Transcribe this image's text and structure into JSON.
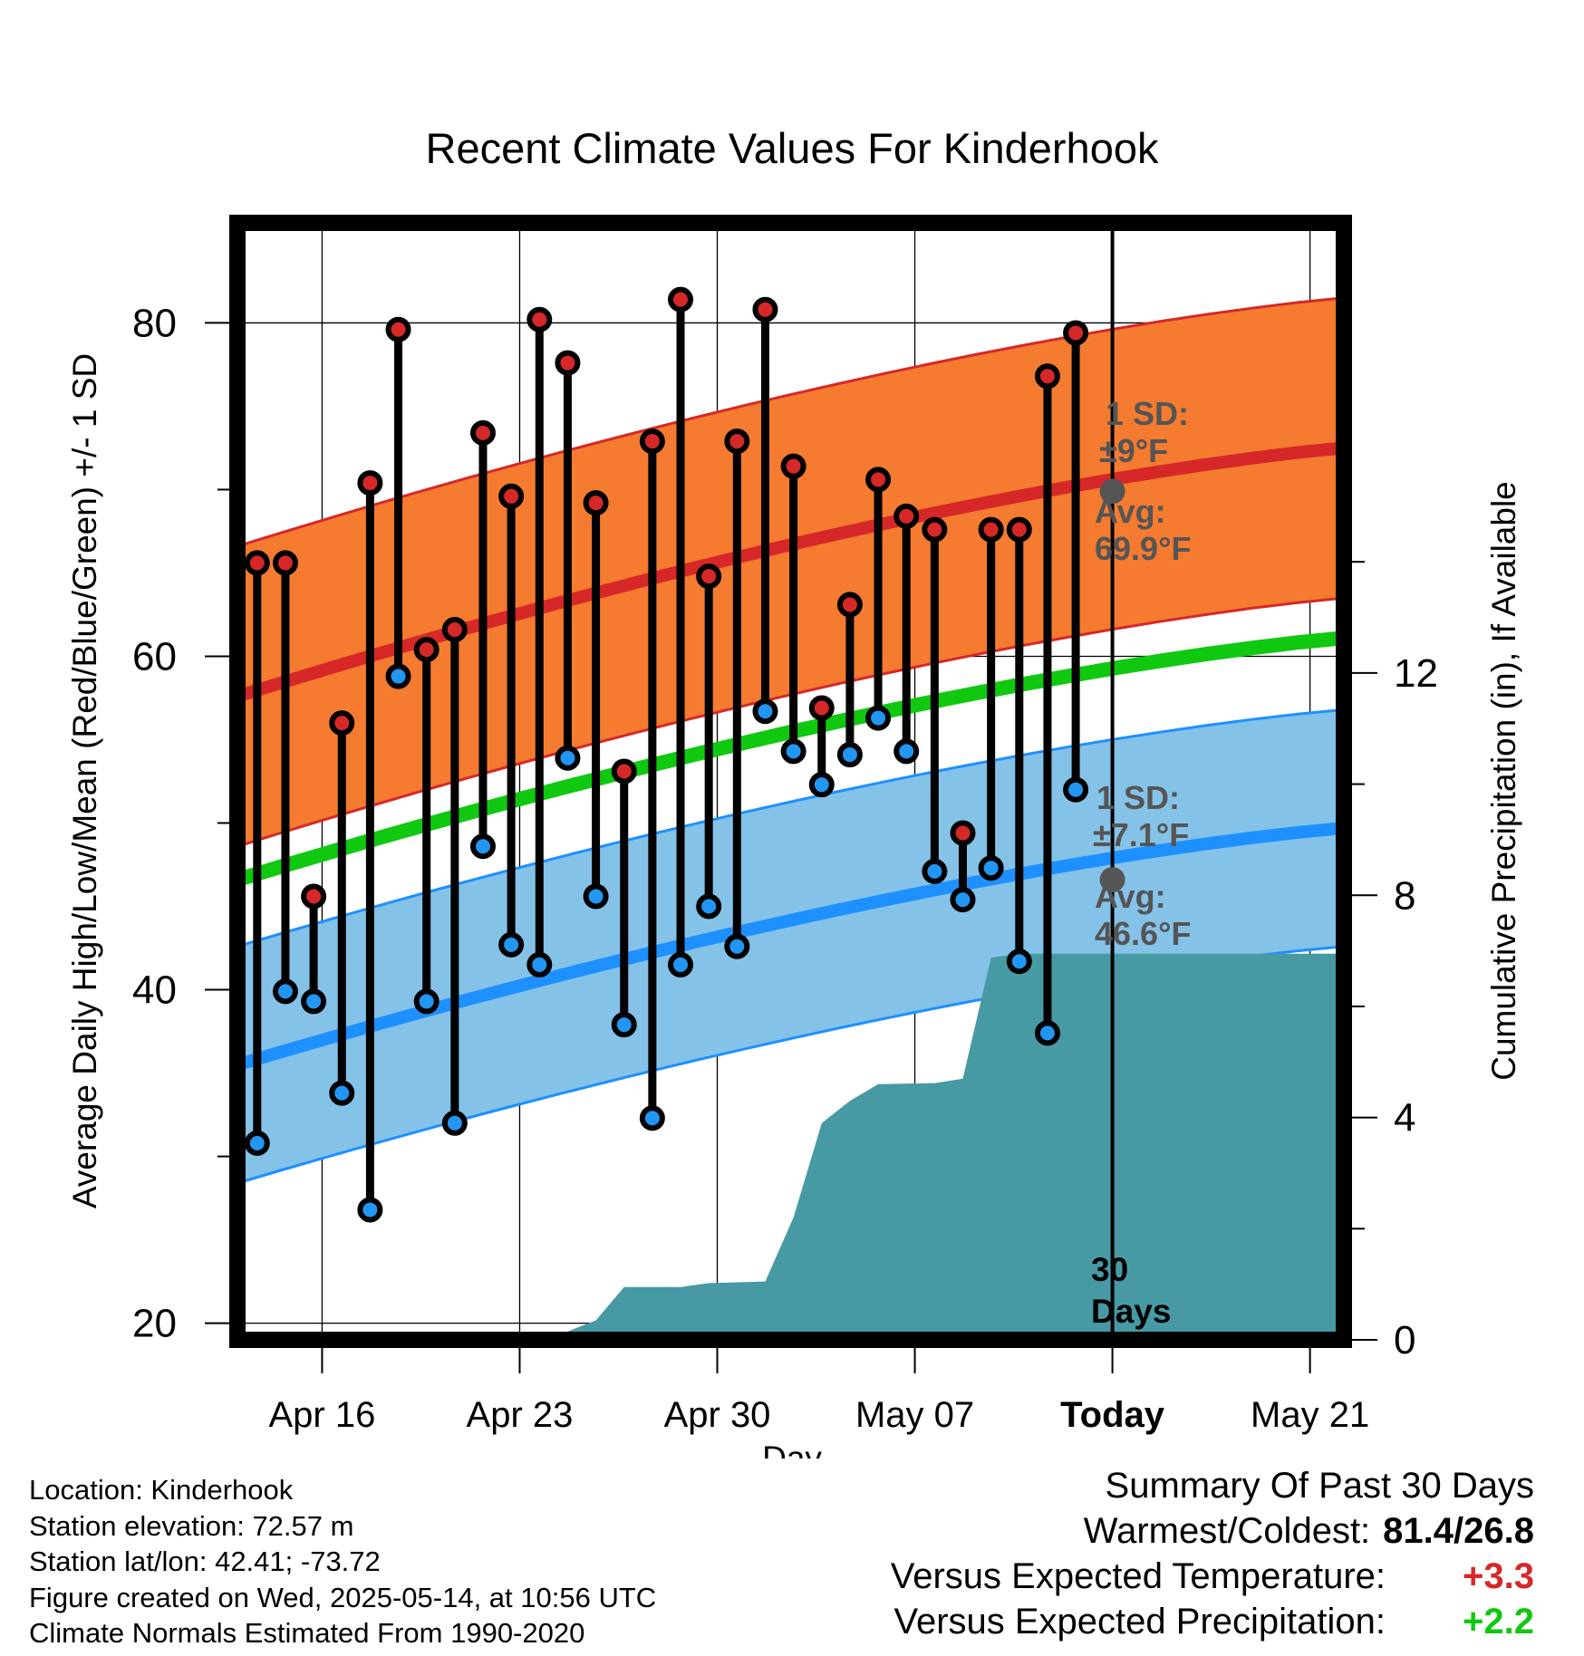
{
  "chart_data": {
    "type": "line",
    "title": "Recent Climate Values For Kinderhook",
    "xlabel": "Day",
    "ylabel": "Average Daily High/Low/Mean (Red/Blue/Green) +/- 1 SD",
    "y2label": "Cumulative Precipitation (in), If Available",
    "ylim": [
      19,
      86
    ],
    "y2lim": [
      0,
      20.1
    ],
    "xlim": [
      -0.7,
      38.5
    ],
    "yticks": [
      "20",
      "40",
      "60",
      "80"
    ],
    "y2ticks": [
      "0",
      "4",
      "8",
      "12"
    ],
    "xticks": [
      {
        "x": 2.3,
        "label": "Apr 16"
      },
      {
        "x": 9.3,
        "label": "Apr 23"
      },
      {
        "x": 16.3,
        "label": "Apr 30"
      },
      {
        "x": 23.3,
        "label": "May 07"
      },
      {
        "x": 30.3,
        "label": "Today"
      },
      {
        "x": 37.3,
        "label": "May 21"
      }
    ],
    "grid": true,
    "days": [
      {
        "high": 65.6,
        "low": 30.8
      },
      {
        "high": 65.6,
        "low": 39.9
      },
      {
        "high": 45.6,
        "low": 39.3
      },
      {
        "high": 56.0,
        "low": 33.8
      },
      {
        "high": 70.4,
        "low": 26.8
      },
      {
        "high": 79.6,
        "low": 58.8
      },
      {
        "high": 60.4,
        "low": 39.3
      },
      {
        "high": 61.6,
        "low": 32.0
      },
      {
        "high": 73.4,
        "low": 48.6
      },
      {
        "high": 69.6,
        "low": 42.7
      },
      {
        "high": 80.2,
        "low": 41.5
      },
      {
        "high": 77.6,
        "low": 53.9
      },
      {
        "high": 69.2,
        "low": 45.6
      },
      {
        "high": 53.1,
        "low": 37.9
      },
      {
        "high": 72.9,
        "low": 32.3
      },
      {
        "high": 81.4,
        "low": 41.5
      },
      {
        "high": 64.8,
        "low": 45.0
      },
      {
        "high": 72.9,
        "low": 42.6
      },
      {
        "high": 80.8,
        "low": 56.7
      },
      {
        "high": 71.4,
        "low": 54.3
      },
      {
        "high": 56.9,
        "low": 52.3
      },
      {
        "high": 63.1,
        "low": 54.1
      },
      {
        "high": 70.6,
        "low": 56.3
      },
      {
        "high": 68.4,
        "low": 54.3
      },
      {
        "high": 67.6,
        "low": 47.1
      },
      {
        "high": 49.4,
        "low": 45.4
      },
      {
        "high": 67.6,
        "low": 47.3
      },
      {
        "high": 67.6,
        "low": 41.7
      },
      {
        "high": 76.8,
        "low": 37.4
      },
      {
        "high": 79.4,
        "low": 52.0
      }
    ],
    "normals": {
      "x_range": [
        -0.7,
        38.5
      ],
      "high_mean": [
        57.6,
        72.5
      ],
      "high_sd": 9,
      "low_mean": [
        35.5,
        49.7
      ],
      "low_sd": 7.1,
      "mean": [
        46.6,
        61.1
      ]
    },
    "precip_cumulative": [
      [
        -0.7,
        0
      ],
      [
        7,
        0.02
      ],
      [
        11,
        0.15
      ],
      [
        12,
        0.35
      ],
      [
        13,
        0.95
      ],
      [
        15,
        0.95
      ],
      [
        16,
        1.02
      ],
      [
        18,
        1.05
      ],
      [
        19,
        2.2
      ],
      [
        20,
        3.9
      ],
      [
        21,
        4.3
      ],
      [
        22,
        4.6
      ],
      [
        24,
        4.62
      ],
      [
        25,
        4.7
      ],
      [
        26,
        6.88
      ],
      [
        27,
        6.95
      ],
      [
        38.5,
        6.95
      ]
    ],
    "today_x": 30.3,
    "annotations": {
      "high_sd_label": "1 SD:",
      "high_sd_value": "±9°F",
      "high_avg_label": "Avg:",
      "high_avg_value": "69.9°F",
      "high_avg_point": 69.9,
      "low_sd_label": "1 SD:",
      "low_sd_value": "±7.1°F",
      "low_avg_label": "Avg:",
      "low_avg_value": "46.6°F",
      "low_avg_point": 46.6,
      "days_count": "30",
      "days_label": "Days"
    },
    "colors": {
      "high_band": "#f47b2f",
      "high_line": "#d62828",
      "low_band": "#85c2e8",
      "low_line": "#1e90ff",
      "mean_line": "#10c810",
      "precip": "#479aa3",
      "annotation": "#555555",
      "high_dot": "#d62828",
      "low_dot": "#2196f3"
    }
  },
  "info": {
    "location": "Location: Kinderhook",
    "elevation": "Station elevation: 72.57 m",
    "latlon": "Station lat/lon: 42.41; -73.72",
    "created": "Figure created on Wed, 2025-05-14, at 10:56 UTC",
    "normals": "Climate Normals Estimated From 1990-2020"
  },
  "summary": {
    "title": "Summary Of Past 30 Days",
    "warm_cold_label": "Warmest/Coldest:",
    "warm_cold_value": "81.4/26.8",
    "temp_label": "Versus Expected Temperature:",
    "temp_value": "+3.3",
    "temp_color": "#d62828",
    "precip_label": "Versus Expected Precipitation:",
    "precip_value": "+2.2",
    "precip_color": "#10c810"
  }
}
